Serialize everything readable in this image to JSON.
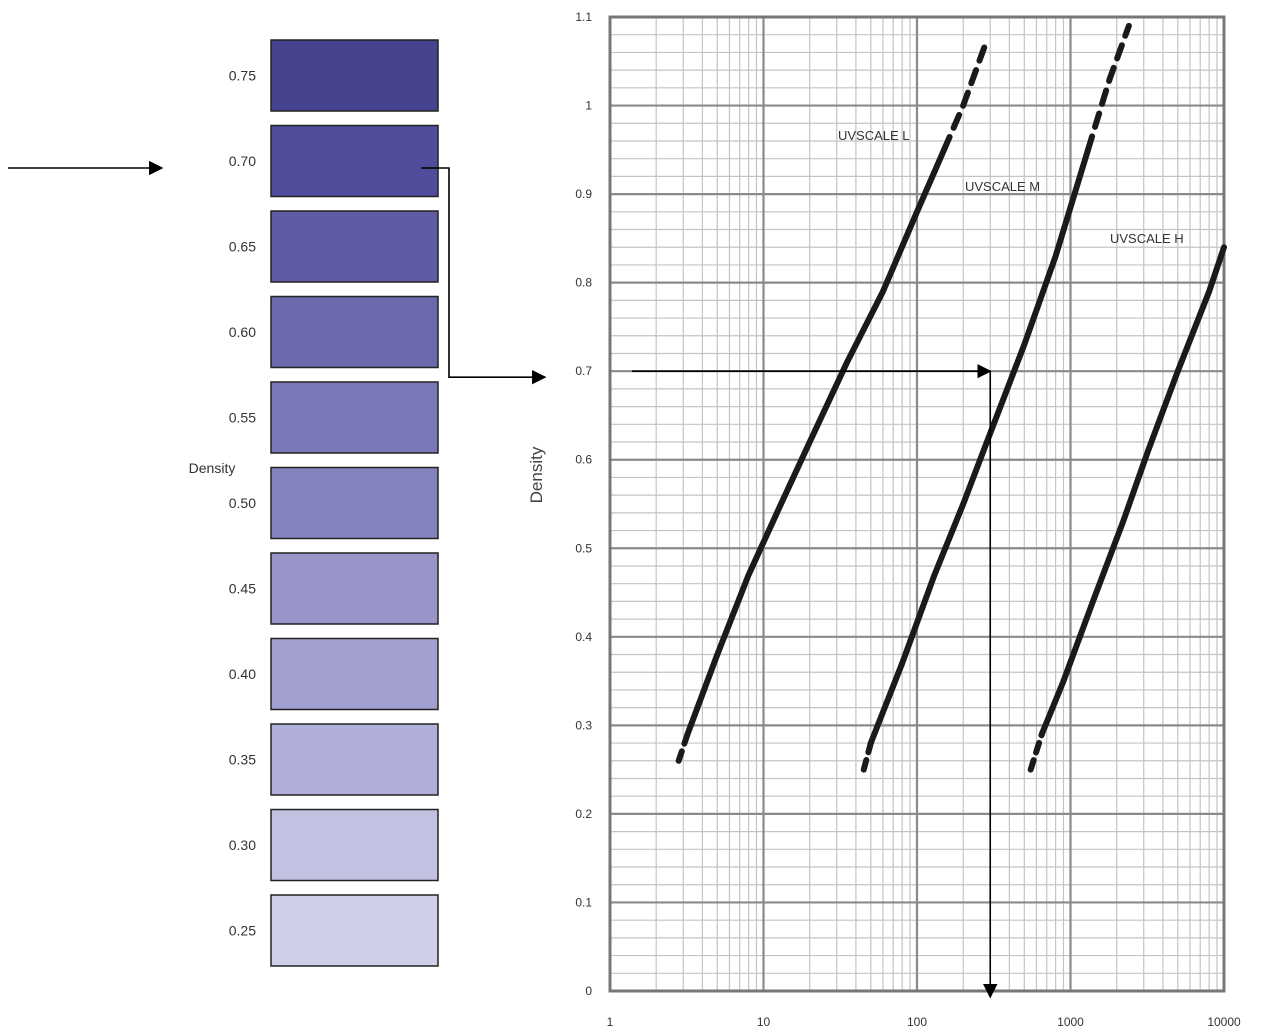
{
  "swatches": {
    "label": "Density",
    "items": [
      {
        "label": "0.75",
        "color": "#46448f"
      },
      {
        "label": "0.70",
        "color": "#504e9c"
      },
      {
        "label": "0.65",
        "color": "#5f5ca5"
      },
      {
        "label": "0.60",
        "color": "#6c69ac"
      },
      {
        "label": "0.55",
        "color": "#7b78b8"
      },
      {
        "label": "0.50",
        "color": "#8583be"
      },
      {
        "label": "0.45",
        "color": "#9896c9"
      },
      {
        "label": "0.40",
        "color": "#a2a0d0"
      },
      {
        "label": "0.35",
        "color": "#b0afd9"
      },
      {
        "label": "0.30",
        "color": "#c1c1e2"
      },
      {
        "label": "0.25",
        "color": "#cfcfe9"
      }
    ],
    "selected_label": "0.70"
  },
  "chart_data": {
    "type": "line",
    "xscale": "log",
    "xlim": [
      1,
      10000
    ],
    "ylim": [
      0,
      1.1
    ],
    "xlabel": "",
    "ylabel": "Density",
    "grid": true,
    "x_ticks": [
      "1",
      "10",
      "100",
      "1000",
      "10000"
    ],
    "y_ticks": [
      "0",
      "0.1",
      "0.2",
      "0.3",
      "0.4",
      "0.5",
      "0.6",
      "0.7",
      "0.8",
      "0.9",
      "1",
      "1.1"
    ],
    "series": [
      {
        "name": "UVSCALE L",
        "x": [
          2.8,
          3.2,
          5,
          8,
          13,
          20,
          35,
          60,
          100,
          150,
          200,
          280
        ],
        "y": [
          0.26,
          0.29,
          0.38,
          0.47,
          0.55,
          0.62,
          0.71,
          0.79,
          0.88,
          0.95,
          1.0,
          1.07
        ]
      },
      {
        "name": "UVSCALE M",
        "x": [
          45,
          50,
          80,
          130,
          200,
          300,
          500,
          800,
          1300,
          1800,
          2400
        ],
        "y": [
          0.25,
          0.28,
          0.37,
          0.47,
          0.55,
          0.63,
          0.73,
          0.83,
          0.95,
          1.03,
          1.09
        ]
      },
      {
        "name": "UVSCALE H",
        "x": [
          550,
          650,
          900,
          1400,
          2200,
          3200,
          5000,
          8000,
          10000
        ],
        "y": [
          0.25,
          0.29,
          0.35,
          0.44,
          0.53,
          0.61,
          0.7,
          0.79,
          0.84
        ]
      }
    ],
    "reading": {
      "density": 0.7,
      "x": 300
    }
  },
  "colors": {
    "grid_major": "#8a8a8a",
    "grid_minor": "#c4c4c4",
    "curve": "#1a1a1a",
    "frame": "#777777",
    "arrow": "#000000"
  }
}
